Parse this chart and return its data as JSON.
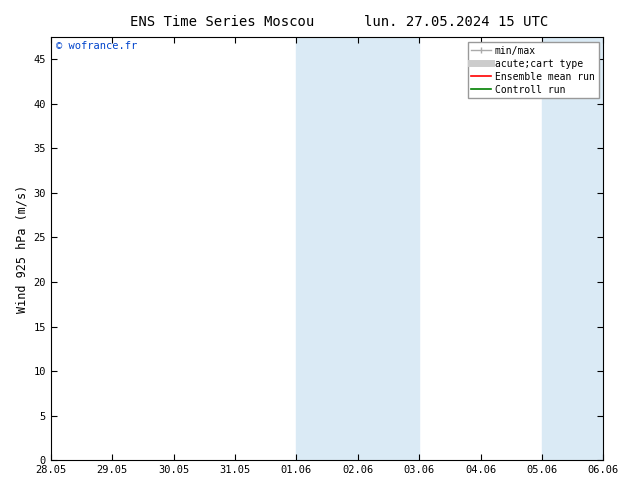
{
  "title_left": "ENS Time Series Moscou",
  "title_right": "lun. 27.05.2024 15 UTC",
  "ylabel": "Wind 925 hPa (m/s)",
  "watermark": "© wofrance.fr",
  "x_tick_labels": [
    "28.05",
    "29.05",
    "30.05",
    "31.05",
    "01.06",
    "02.06",
    "03.06",
    "04.06",
    "05.06",
    "06.06"
  ],
  "x_tick_positions": [
    0,
    1,
    2,
    3,
    4,
    5,
    6,
    7,
    8,
    9
  ],
  "ylim": [
    0,
    47.5
  ],
  "yticks": [
    0,
    5,
    10,
    15,
    20,
    25,
    30,
    35,
    40,
    45
  ],
  "shaded_bands": [
    {
      "x_start": 4,
      "x_end": 5
    },
    {
      "x_start": 5,
      "x_end": 6
    },
    {
      "x_start": 8,
      "x_end": 9
    }
  ],
  "shaded_color": "#daeaf5",
  "legend_entries": [
    {
      "label": "min/max",
      "color": "#aaaaaa",
      "lw": 1.0,
      "style": "line_with_caps"
    },
    {
      "label": "acute;cart type",
      "color": "#cccccc",
      "lw": 5,
      "style": "line"
    },
    {
      "label": "Ensemble mean run",
      "color": "red",
      "lw": 1.2,
      "style": "line"
    },
    {
      "label": "Controll run",
      "color": "green",
      "lw": 1.2,
      "style": "line"
    }
  ],
  "bg_color": "#ffffff",
  "plot_area_bg": "#ffffff",
  "title_fontsize": 10,
  "tick_fontsize": 7.5,
  "ylabel_fontsize": 8.5,
  "watermark_color": "#0044cc"
}
